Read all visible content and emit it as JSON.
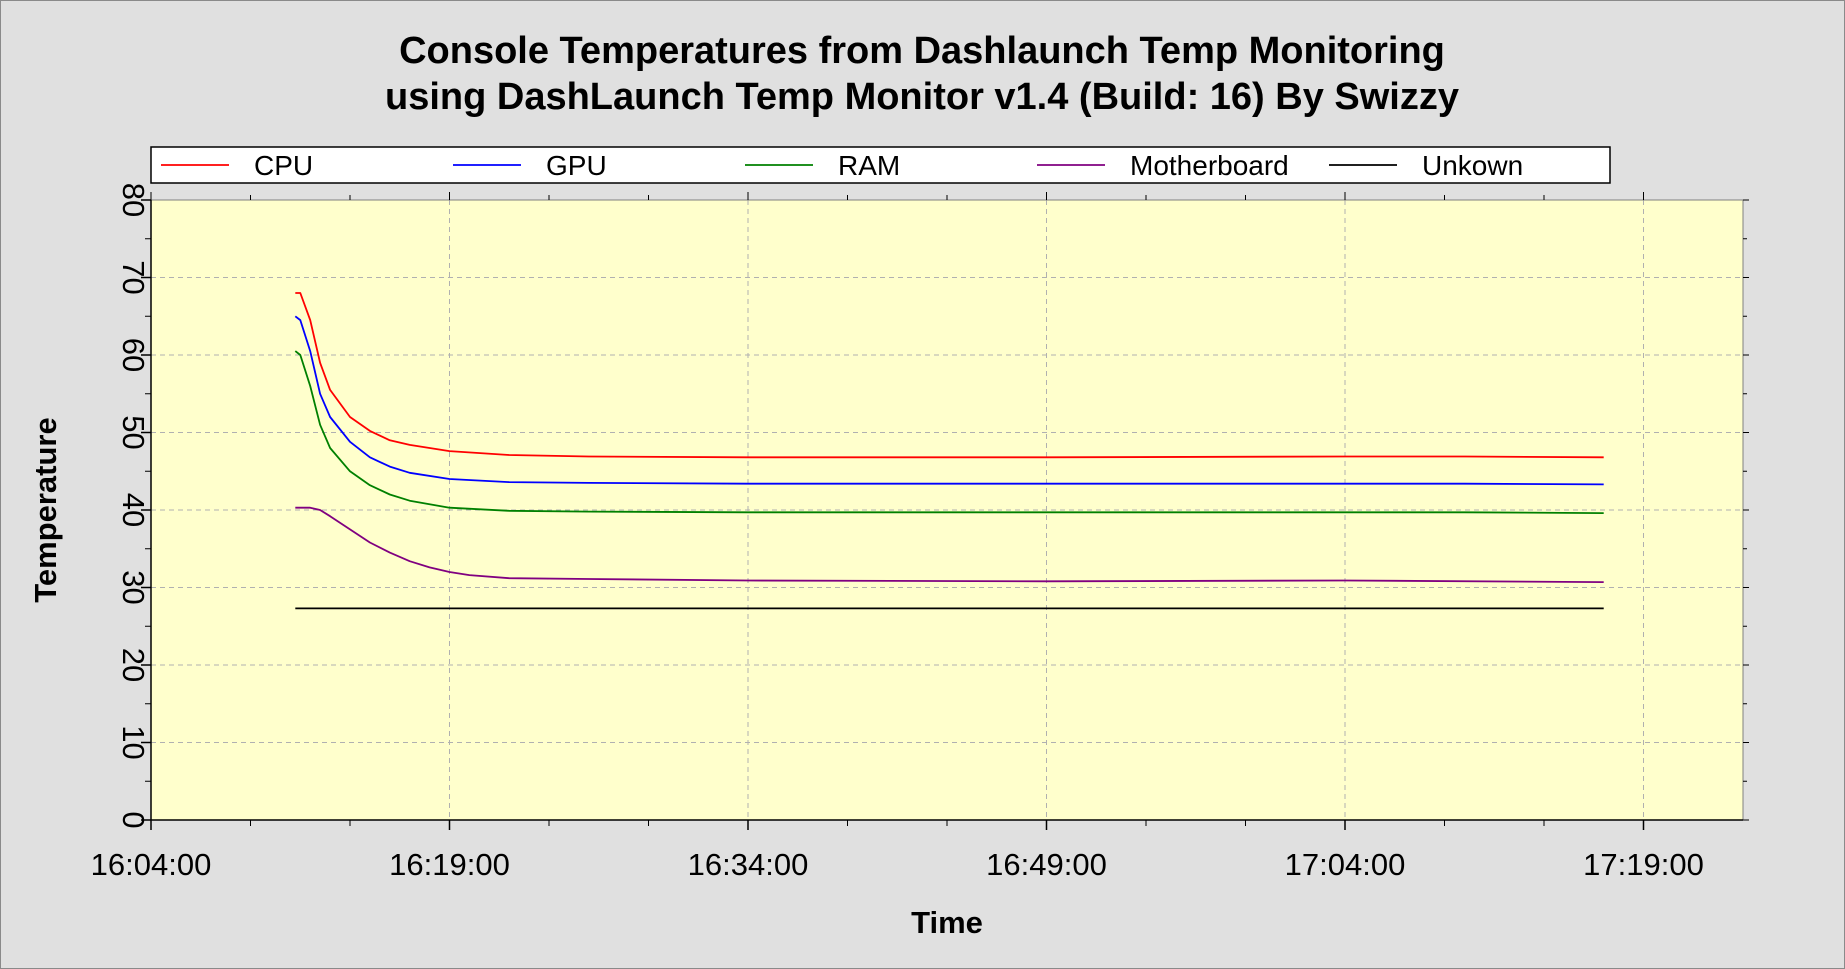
{
  "chart_data": {
    "type": "line",
    "title": "Console Temperatures from Dashlaunch Temp Monitoring",
    "subtitle": "using DashLaunch Temp Monitor v1.4 (Build: 16) By Swizzy",
    "xlabel": "Time",
    "ylabel": "Temperature",
    "ylim": [
      0,
      80
    ],
    "yticks": [
      "0",
      "10",
      "20",
      "30",
      "40",
      "50",
      "60",
      "70",
      "80"
    ],
    "xlim": [
      "16:04:00",
      "17:24:00"
    ],
    "xticks": [
      "16:04:00",
      "16:19:00",
      "16:34:00",
      "16:49:00",
      "17:04:00",
      "17:19:00"
    ],
    "grid": true,
    "legend_position": "top",
    "plot_background": "#ffffcc",
    "series": [
      {
        "name": "CPU",
        "color": "#ff0000",
        "x": [
          "16:11:15",
          "16:11:30",
          "16:12:00",
          "16:12:30",
          "16:13:00",
          "16:14:00",
          "16:15:00",
          "16:16:00",
          "16:17:00",
          "16:19:00",
          "16:22:00",
          "16:26:00",
          "16:34:00",
          "16:49:00",
          "17:04:00",
          "17:10:00",
          "17:17:00"
        ],
        "values": [
          68,
          68,
          64.5,
          59,
          55.5,
          52,
          50.2,
          49,
          48.4,
          47.6,
          47.1,
          46.9,
          46.8,
          46.8,
          46.9,
          46.9,
          46.8
        ]
      },
      {
        "name": "GPU",
        "color": "#0000ff",
        "x": [
          "16:11:15",
          "16:11:30",
          "16:12:00",
          "16:12:30",
          "16:13:00",
          "16:14:00",
          "16:15:00",
          "16:16:00",
          "16:17:00",
          "16:19:00",
          "16:22:00",
          "16:26:00",
          "16:34:00",
          "16:49:00",
          "17:04:00",
          "17:10:00",
          "17:17:00"
        ],
        "values": [
          65,
          64.5,
          60.5,
          55,
          52,
          48.8,
          46.8,
          45.6,
          44.8,
          44,
          43.6,
          43.5,
          43.4,
          43.4,
          43.4,
          43.4,
          43.3
        ]
      },
      {
        "name": "RAM",
        "color": "#008000",
        "x": [
          "16:11:15",
          "16:11:30",
          "16:12:00",
          "16:12:30",
          "16:13:00",
          "16:14:00",
          "16:15:00",
          "16:16:00",
          "16:17:00",
          "16:19:00",
          "16:22:00",
          "16:26:00",
          "16:34:00",
          "16:49:00",
          "17:04:00",
          "17:10:00",
          "17:17:00"
        ],
        "values": [
          60.5,
          60,
          56,
          51,
          48,
          45,
          43.2,
          42,
          41.2,
          40.3,
          39.9,
          39.8,
          39.7,
          39.7,
          39.7,
          39.7,
          39.6
        ]
      },
      {
        "name": "Motherboard",
        "color": "#800080",
        "x": [
          "16:11:15",
          "16:12:00",
          "16:12:30",
          "16:13:00",
          "16:14:00",
          "16:15:00",
          "16:16:00",
          "16:17:00",
          "16:18:00",
          "16:19:00",
          "16:20:00",
          "16:22:00",
          "16:26:00",
          "16:34:00",
          "16:49:00",
          "17:04:00",
          "17:17:00"
        ],
        "values": [
          40.3,
          40.3,
          40,
          39.2,
          37.5,
          35.8,
          34.5,
          33.4,
          32.6,
          32,
          31.6,
          31.2,
          31.1,
          30.9,
          30.8,
          30.9,
          30.7
        ]
      },
      {
        "name": "Unkown",
        "color": "#000000",
        "x": [
          "16:11:15",
          "17:17:00"
        ],
        "values": [
          27.3,
          27.3
        ]
      }
    ]
  }
}
